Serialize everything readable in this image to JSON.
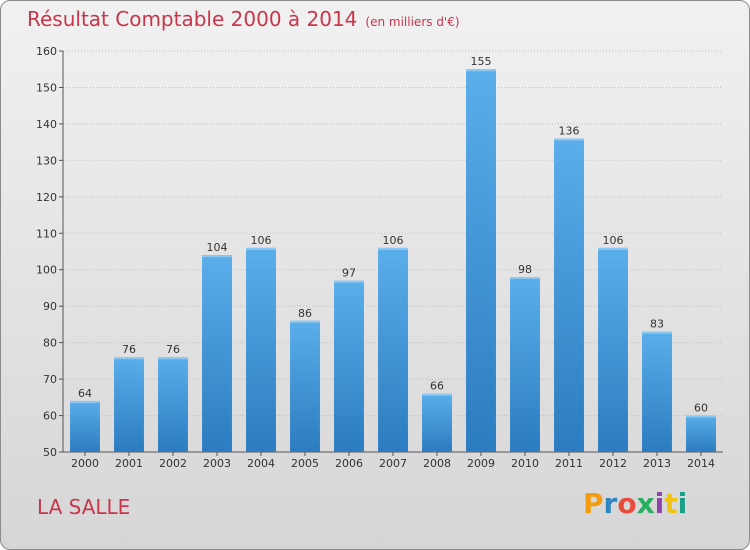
{
  "header": {
    "title": "Résultat Comptable 2000 à 2014",
    "subtitle": "(en milliers d'€)"
  },
  "commune": "LA SALLE",
  "logo": {
    "text": "Proxiti",
    "letter_colors": [
      "#f39c12",
      "#2e86c1",
      "#e74c3c",
      "#27ae60",
      "#8e44ad",
      "#f1c40f",
      "#16a085"
    ]
  },
  "colors": {
    "bar": "#4fa3e0",
    "bar_dark": "#2b7cc0",
    "title": "#c8364a"
  },
  "chart_data": {
    "type": "bar",
    "title": "Résultat Comptable 2000 à 2014",
    "subtitle": "(en milliers d'€)",
    "xlabel": "",
    "ylabel": "",
    "categories": [
      "2000",
      "2001",
      "2002",
      "2003",
      "2004",
      "2005",
      "2006",
      "2007",
      "2008",
      "2009",
      "2010",
      "2011",
      "2012",
      "2013",
      "2014"
    ],
    "values": [
      64,
      76,
      76,
      104,
      106,
      86,
      97,
      106,
      66,
      155,
      98,
      136,
      106,
      83,
      60
    ],
    "ylim": [
      50,
      160
    ],
    "yticks": [
      50,
      60,
      70,
      80,
      90,
      100,
      110,
      120,
      130,
      140,
      150,
      160
    ],
    "grid": true,
    "data_labels": true
  }
}
